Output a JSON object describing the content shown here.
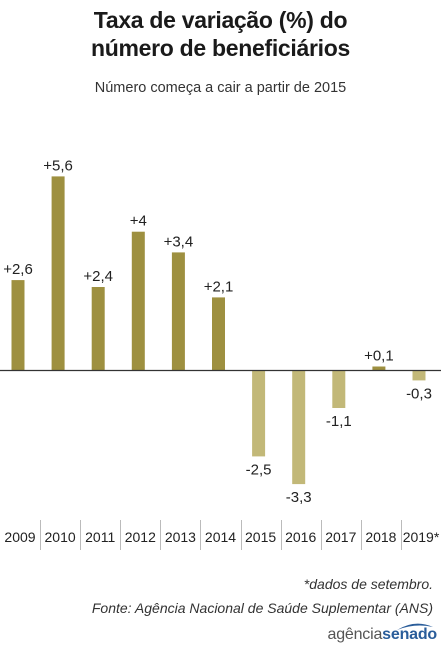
{
  "title_line1": "Taxa de variação (%) do",
  "title_line2": "número de beneficiários",
  "subtitle": "Número começa a cair a partir de 2015",
  "footnote": "*dados de setembro.",
  "source": "Fonte: Agência Nacional de Saúde Suplementar (ANS)",
  "logo": {
    "part1": "agência",
    "part2": "senado"
  },
  "colors": {
    "positive": "#9e9040",
    "negative": "#c2b878",
    "baseline": "#333333",
    "divider": "#bbbbbb"
  },
  "chart_data": {
    "type": "bar",
    "title": "Taxa de variação (%) do número de beneficiários",
    "subtitle": "Número começa a cair a partir de 2015",
    "categories": [
      "2009",
      "2010",
      "2011",
      "2012",
      "2013",
      "2014",
      "2015",
      "2016",
      "2017",
      "2018",
      "2019*"
    ],
    "values": [
      2.6,
      5.6,
      2.4,
      4,
      3.4,
      2.1,
      -2.5,
      -3.3,
      -1.1,
      0.1,
      -0.3
    ],
    "labels": [
      "+2,6",
      "+5,6",
      "+2,4",
      "+4",
      "+3,4",
      "+2,1",
      "-2,5",
      "-3,3",
      "-1,1",
      "+0,1",
      "-0,3"
    ],
    "xlabel": "",
    "ylabel": "",
    "ylim": [
      -3.6,
      5.9
    ],
    "grid": false,
    "legend": "none"
  }
}
